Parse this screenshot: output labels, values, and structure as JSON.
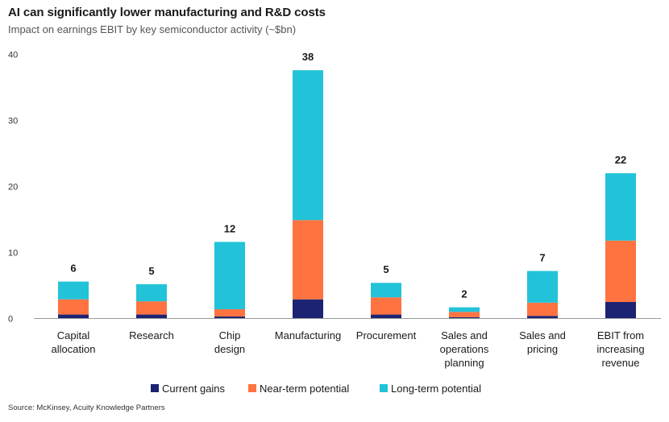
{
  "title": "AI can significantly lower manufacturing and R&D costs",
  "subtitle": "Impact on earnings EBIT by key semiconductor activity (~$bn)",
  "source": "Source: McKinsey, Acuity Knowledge Partners",
  "chart_data": {
    "type": "bar",
    "stacked": true,
    "categories": [
      [
        "Capital",
        "allocation"
      ],
      [
        "Research"
      ],
      [
        "Chip",
        "design"
      ],
      [
        "Manufacturing"
      ],
      [
        "Procurement"
      ],
      [
        "Sales and",
        "operations",
        "planning"
      ],
      [
        "Sales and",
        "pricing"
      ],
      [
        "EBIT from",
        "increasing",
        "revenue"
      ]
    ],
    "series": [
      {
        "name": "Current gains",
        "color": "#1c2372",
        "values": [
          0.6,
          0.6,
          0.3,
          2.9,
          0.6,
          0.2,
          0.4,
          2.5
        ]
      },
      {
        "name": "Near-term potential",
        "color": "#ff7340",
        "values": [
          2.3,
          2.0,
          1.1,
          12.0,
          2.6,
          0.8,
          2.0,
          9.3
        ]
      },
      {
        "name": "Long-term potential",
        "color": "#22c3d8",
        "values": [
          2.7,
          2.6,
          10.2,
          22.7,
          2.2,
          0.7,
          4.8,
          10.2
        ]
      }
    ],
    "totals": [
      "6",
      "5",
      "12",
      "38",
      "5",
      "2",
      "7",
      "22"
    ],
    "ylim": [
      0,
      40
    ],
    "yticks": [
      0,
      10,
      20,
      30,
      40
    ],
    "grid": false,
    "legend": "bottom-center"
  }
}
